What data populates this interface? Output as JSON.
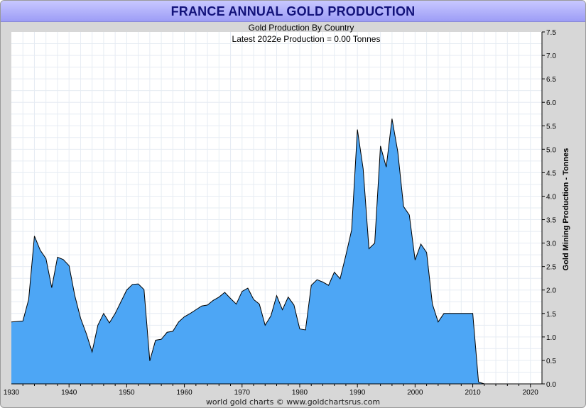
{
  "title": "FRANCE ANNUAL GOLD PRODUCTION",
  "footer": "world gold charts © www.goldchartsrus.com",
  "colors": {
    "fill": "#4da6f5",
    "line": "#000000",
    "grid": "#e6ecf3",
    "title_text": "#12127a",
    "title_bg": "#a9a9f7",
    "frame": "#d7d7d7"
  },
  "chart_data": {
    "type": "area",
    "subtitle": "Gold Production By Country",
    "annotation": "Latest 2022e  Production = 0.00 Tonnes",
    "ylabel": "Gold Mining Production - Tonnes",
    "xlabel": "",
    "xlim": [
      1930,
      2022
    ],
    "ylim": [
      0,
      7.5
    ],
    "x_ticks": [
      1930,
      1940,
      1950,
      1960,
      1970,
      1980,
      1990,
      2000,
      2010,
      2020
    ],
    "y_ticks": [
      "0.0",
      "0.5",
      "1.0",
      "1.5",
      "2.0",
      "2.5",
      "3.0",
      "3.5",
      "4.0",
      "4.5",
      "5.0",
      "5.5",
      "6.0",
      "6.5",
      "7.0",
      "7.5"
    ],
    "grid": true,
    "series": [
      {
        "name": "France",
        "x": [
          1930,
          1932,
          1933,
          1934,
          1935,
          1936,
          1937,
          1938,
          1939,
          1940,
          1941,
          1942,
          1943,
          1944,
          1945,
          1946,
          1947,
          1948,
          1949,
          1950,
          1951,
          1952,
          1953,
          1954,
          1955,
          1956,
          1957,
          1958,
          1959,
          1960,
          1961,
          1962,
          1963,
          1964,
          1965,
          1966,
          1967,
          1968,
          1969,
          1970,
          1971,
          1972,
          1973,
          1974,
          1975,
          1976,
          1977,
          1978,
          1979,
          1980,
          1981,
          1982,
          1983,
          1984,
          1985,
          1986,
          1987,
          1988,
          1989,
          1990,
          1991,
          1992,
          1993,
          1994,
          1995,
          1996,
          1997,
          1998,
          1999,
          2000,
          2001,
          2002,
          2003,
          2004,
          2005,
          2006,
          2007,
          2008,
          2009,
          2010,
          2011,
          2012,
          2022
        ],
        "values": [
          1.32,
          1.34,
          1.8,
          3.15,
          2.85,
          2.67,
          2.05,
          2.7,
          2.65,
          2.52,
          1.88,
          1.4,
          1.07,
          0.68,
          1.25,
          1.5,
          1.3,
          1.5,
          1.75,
          2.0,
          2.12,
          2.13,
          2.01,
          0.49,
          0.93,
          0.95,
          1.1,
          1.12,
          1.32,
          1.43,
          1.5,
          1.58,
          1.66,
          1.68,
          1.78,
          1.85,
          1.95,
          1.82,
          1.7,
          1.97,
          2.04,
          1.8,
          1.7,
          1.25,
          1.45,
          1.88,
          1.58,
          1.85,
          1.68,
          1.17,
          1.15,
          2.1,
          2.22,
          2.17,
          2.1,
          2.38,
          2.24,
          2.74,
          3.28,
          5.42,
          4.58,
          2.88,
          3.0,
          5.07,
          4.62,
          5.65,
          4.95,
          3.78,
          3.6,
          2.64,
          2.98,
          2.8,
          1.7,
          1.32,
          1.5,
          1.5,
          1.5,
          1.5,
          1.5,
          1.5,
          0.04,
          0.0,
          0.0
        ]
      }
    ]
  }
}
